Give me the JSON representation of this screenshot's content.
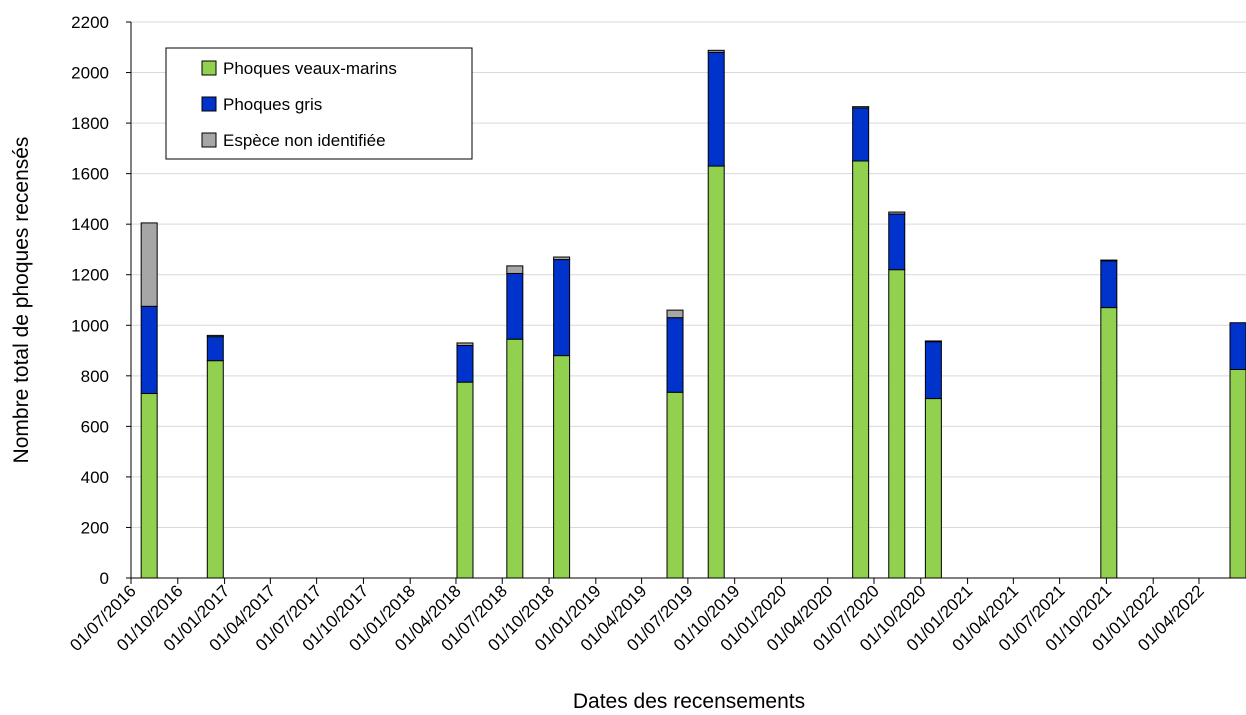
{
  "chart_data": {
    "type": "bar",
    "stacked": true,
    "title": "",
    "xlabel": "Dates des recensements",
    "ylabel": "Nombre total de phoques recensés",
    "ylim": [
      0,
      2200
    ],
    "y_ticks": [
      0,
      200,
      400,
      600,
      800,
      1000,
      1200,
      1400,
      1600,
      1800,
      2000,
      2200
    ],
    "x_range": [
      "2016-07-01",
      "2022-06-01"
    ],
    "x_ticks": [
      "01/07/2016",
      "01/10/2016",
      "01/01/2017",
      "01/04/2017",
      "01/07/2017",
      "01/10/2017",
      "01/01/2018",
      "01/04/2018",
      "01/07/2018",
      "01/10/2018",
      "01/01/2019",
      "01/04/2019",
      "01/07/2019",
      "01/10/2019",
      "01/01/2020",
      "01/04/2020",
      "01/07/2020",
      "01/10/2020",
      "01/01/2021",
      "01/04/2021",
      "01/07/2021",
      "01/10/2021",
      "01/01/2022",
      "01/04/2022"
    ],
    "grid": "horizontal",
    "legend_position": "top-left",
    "colors": {
      "Phoques veaux-marins": "#92d050",
      "Phoques gris": "#0033cc",
      "Espèce non identifiée": "#a6a6a6"
    },
    "dates": [
      "2016-07-21",
      "2016-11-28",
      "2018-04-03",
      "2018-07-10",
      "2018-10-10",
      "2019-05-21",
      "2019-08-10",
      "2020-05-20",
      "2020-07-30",
      "2020-10-10",
      "2021-09-20",
      "2022-06-01"
    ],
    "series": [
      {
        "name": "Phoques veaux-marins",
        "values": [
          730,
          860,
          775,
          945,
          880,
          735,
          1630,
          1650,
          1220,
          710,
          1070,
          825
        ]
      },
      {
        "name": "Phoques gris",
        "values": [
          345,
          95,
          145,
          260,
          380,
          295,
          450,
          210,
          220,
          225,
          185,
          185
        ]
      },
      {
        "name": "Espèce non identifiée",
        "values": [
          330,
          5,
          10,
          30,
          10,
          30,
          8,
          5,
          8,
          3,
          3,
          0
        ]
      }
    ]
  }
}
